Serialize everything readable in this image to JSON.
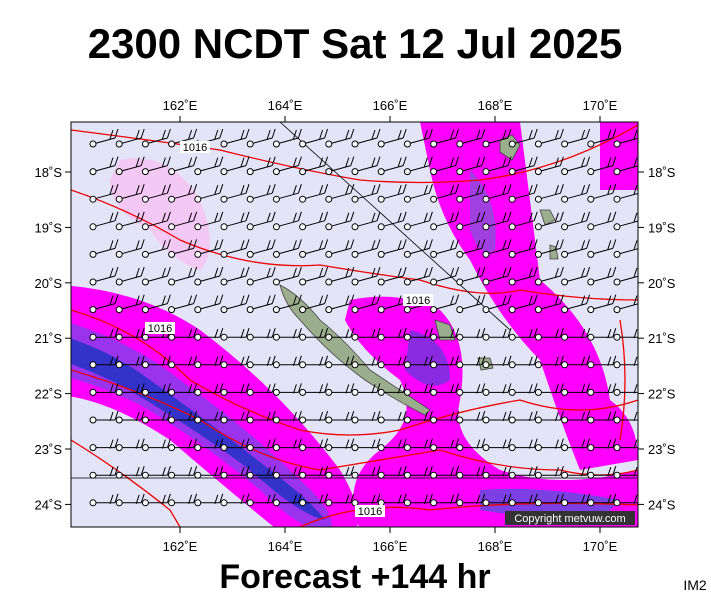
{
  "header": {
    "title": "2300 NCDT Sat 12 Jul 2025"
  },
  "map": {
    "lon_labels": [
      "162˚E",
      "164˚E",
      "166˚E",
      "168˚E",
      "170˚E"
    ],
    "lat_labels": [
      "18˚S",
      "19˚S",
      "20˚S",
      "21˚S",
      "22˚S",
      "23˚S",
      "24˚S"
    ],
    "isobar_labels": [
      "1016",
      "1016",
      "1016",
      "1016"
    ],
    "copyright": "Copyright metvuw.com"
  },
  "footer": {
    "forecast": "Forecast +144 hr",
    "code": "IM2"
  }
}
